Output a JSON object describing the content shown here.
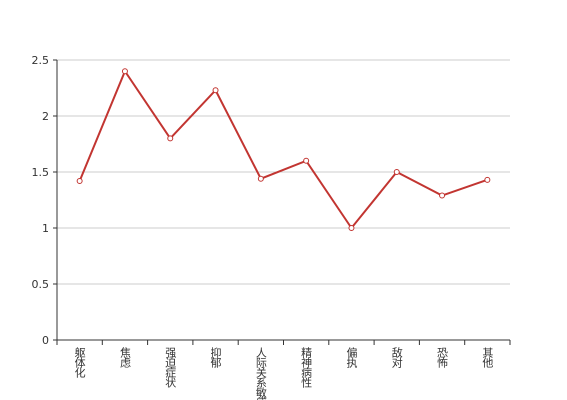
{
  "chart_data": {
    "type": "line",
    "categories": [
      "躯体化",
      "焦虑",
      "强迫症状",
      "抑郁",
      "人际关系敏感",
      "精神病性",
      "偏执",
      "敌对",
      "恐怖",
      "其他"
    ],
    "values": [
      1.42,
      2.4,
      1.8,
      2.23,
      1.44,
      1.6,
      1.0,
      1.5,
      1.29,
      1.43
    ],
    "color": "#c23531",
    "ylim": [
      0,
      2.5
    ],
    "yticks": [
      0,
      0.5,
      1,
      1.5,
      2,
      2.5
    ],
    "grid": true
  }
}
